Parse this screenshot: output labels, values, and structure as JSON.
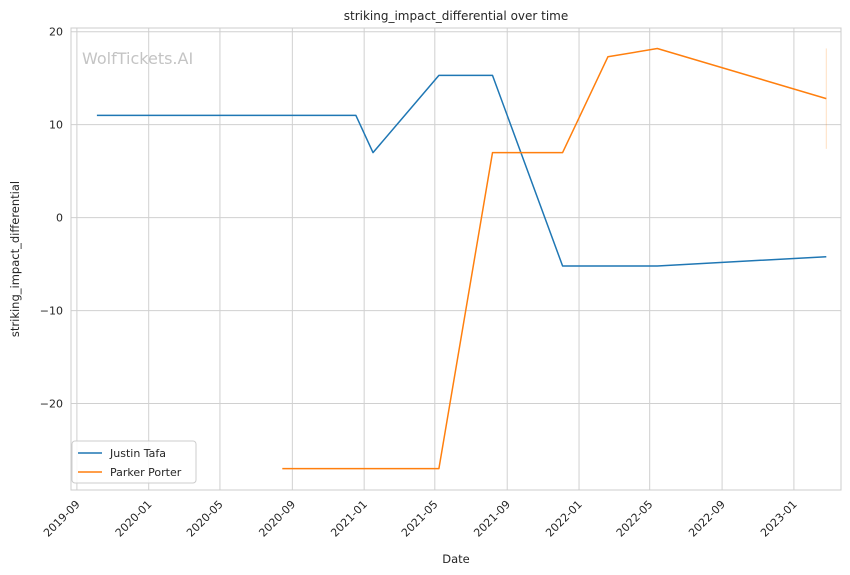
{
  "chart_data": {
    "type": "line",
    "title": "striking_impact_differential over time",
    "xlabel": "Date",
    "ylabel": "striking_impact_differential",
    "watermark": "WolfTickets.AI",
    "x_ticks": [
      "2019-09",
      "2020-01",
      "2020-05",
      "2020-09",
      "2021-01",
      "2021-05",
      "2021-09",
      "2022-01",
      "2022-05",
      "2022-09",
      "2023-01"
    ],
    "y_ticks": [
      20,
      10,
      0,
      -10,
      -20
    ],
    "xlim": [
      "2019-08-22",
      "2023-03-22"
    ],
    "ylim": [
      -29.3,
      20.4
    ],
    "grid": true,
    "legend_position": "lower-left",
    "series": [
      {
        "name": "Justin Tafa",
        "color": "#1f77b4",
        "points": [
          {
            "x": "2019-10-05",
            "y": 11
          },
          {
            "x": "2020-12-18",
            "y": 11
          },
          {
            "x": "2021-01-16",
            "y": 7
          },
          {
            "x": "2021-05-08",
            "y": 15.3
          },
          {
            "x": "2021-08-07",
            "y": 15.3
          },
          {
            "x": "2021-12-04",
            "y": -5.2
          },
          {
            "x": "2022-05-14",
            "y": -5.2
          },
          {
            "x": "2023-02-25",
            "y": -4.2
          }
        ]
      },
      {
        "name": "Parker Porter",
        "color": "#ff7f0e",
        "points": [
          {
            "x": "2020-08-15",
            "y": -27
          },
          {
            "x": "2021-05-08",
            "y": -27
          },
          {
            "x": "2021-08-07",
            "y": 7
          },
          {
            "x": "2021-12-04",
            "y": 7
          },
          {
            "x": "2022-02-19",
            "y": 17.3
          },
          {
            "x": "2022-05-14",
            "y": 18.2
          },
          {
            "x": "2023-02-25",
            "y": 12.8
          }
        ]
      }
    ],
    "error_bar": {
      "x": "2023-02-25",
      "y_low": 7.4,
      "y_high": 18.2,
      "color": "#ff7f0e"
    }
  }
}
